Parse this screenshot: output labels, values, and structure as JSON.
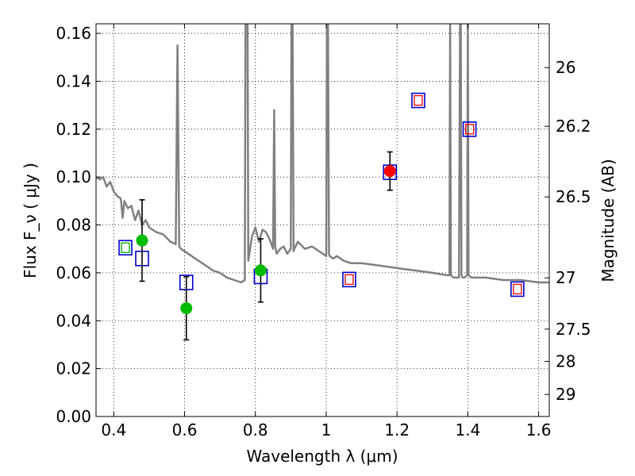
{
  "chart_data": {
    "type": "scatter",
    "title": "",
    "xlabel": "Wavelength  λ (μm)",
    "ylabel": "Flux  F_ν  ( μJy )",
    "ylabel_right": "Magnitude (AB)",
    "xlim": [
      0.35,
      1.63
    ],
    "ylim": [
      0.0,
      0.164
    ],
    "grid": true,
    "x_ticks": [
      0.4,
      0.6,
      0.8,
      1.0,
      1.2,
      1.4,
      1.6
    ],
    "x_tick_labels": [
      "0.4",
      "0.6",
      "0.8",
      "1",
      "1.2",
      "1.4",
      "1.6"
    ],
    "y_ticks": [
      0.0,
      0.02,
      0.04,
      0.06,
      0.08,
      0.1,
      0.12,
      0.14,
      0.16
    ],
    "y_tick_labels": [
      "0.00",
      "0.02",
      "0.04",
      "0.06",
      "0.08",
      "0.10",
      "0.12",
      "0.14",
      "0.16"
    ],
    "right_ticks": [
      {
        "label": "26",
        "flux": 0.1457
      },
      {
        "label": "26.2",
        "flux": 0.1212
      },
      {
        "label": "26.5",
        "flux": 0.0917
      },
      {
        "label": "27",
        "flux": 0.0579
      },
      {
        "label": "27.5",
        "flux": 0.0365
      },
      {
        "label": "28",
        "flux": 0.023
      },
      {
        "label": "29",
        "flux": 0.0092
      }
    ],
    "model_spectrum": {
      "color": "#808080",
      "x": [
        0.35,
        0.36,
        0.37,
        0.38,
        0.39,
        0.4,
        0.41,
        0.42,
        0.425,
        0.43,
        0.44,
        0.45,
        0.46,
        0.47,
        0.48,
        0.49,
        0.5,
        0.52,
        0.54,
        0.56,
        0.575,
        0.58,
        0.585,
        0.59,
        0.6,
        0.62,
        0.64,
        0.66,
        0.68,
        0.7,
        0.72,
        0.74,
        0.76,
        0.77,
        0.772,
        0.775,
        0.778,
        0.78,
        0.79,
        0.8,
        0.81,
        0.82,
        0.83,
        0.84,
        0.85,
        0.853,
        0.856,
        0.86,
        0.87,
        0.88,
        0.89,
        0.9,
        0.902,
        0.905,
        0.908,
        0.91,
        0.92,
        0.94,
        0.96,
        0.98,
        1.0,
        1.002,
        1.005,
        1.008,
        1.01,
        1.02,
        1.03,
        1.05,
        1.07,
        1.1,
        1.15,
        1.2,
        1.25,
        1.3,
        1.34,
        1.348,
        1.35,
        1.352,
        1.36,
        1.375,
        1.378,
        1.38,
        1.382,
        1.385,
        1.39,
        1.398,
        1.4,
        1.402,
        1.41,
        1.45,
        1.5,
        1.55,
        1.6,
        1.63
      ],
      "y": [
        0.1,
        0.099,
        0.1,
        0.096,
        0.098,
        0.094,
        0.092,
        0.091,
        0.083,
        0.09,
        0.087,
        0.088,
        0.082,
        0.086,
        0.08,
        0.082,
        0.079,
        0.077,
        0.076,
        0.073,
        0.072,
        0.155,
        0.071,
        0.07,
        0.069,
        0.067,
        0.065,
        0.063,
        0.061,
        0.06,
        0.058,
        0.057,
        0.056,
        0.057,
        0.165,
        0.165,
        0.165,
        0.065,
        0.075,
        0.079,
        0.073,
        0.078,
        0.077,
        0.074,
        0.07,
        0.128,
        0.071,
        0.068,
        0.07,
        0.071,
        0.068,
        0.07,
        0.165,
        0.165,
        0.069,
        0.07,
        0.073,
        0.07,
        0.071,
        0.069,
        0.067,
        0.165,
        0.165,
        0.068,
        0.067,
        0.066,
        0.067,
        0.065,
        0.064,
        0.064,
        0.063,
        0.062,
        0.061,
        0.06,
        0.059,
        0.059,
        0.165,
        0.059,
        0.058,
        0.058,
        0.165,
        0.165,
        0.059,
        0.058,
        0.058,
        0.059,
        0.165,
        0.059,
        0.058,
        0.058,
        0.057,
        0.057,
        0.056,
        0.056
      ]
    },
    "series": [
      {
        "marker": "open-square",
        "color": "#0000cc",
        "x": [
          0.433,
          0.48,
          0.605,
          0.815,
          1.065,
          1.18,
          1.26,
          1.405,
          1.54
        ],
        "y": [
          0.0705,
          0.066,
          0.056,
          0.0585,
          0.0572,
          0.102,
          0.132,
          0.12,
          0.0532
        ]
      },
      {
        "marker": "small-open-square",
        "color": "#ff0000",
        "x": [
          1.065,
          1.26,
          1.405,
          1.54
        ],
        "y": [
          0.0572,
          0.132,
          0.12,
          0.0532
        ]
      },
      {
        "marker": "small-open-square",
        "color": "#00aa00",
        "x": [
          0.433
        ],
        "y": [
          0.0705
        ]
      },
      {
        "marker": "filled-circle",
        "color": "#00bb00",
        "x": [
          0.48,
          0.605,
          0.815
        ],
        "y": [
          0.0735,
          0.0452,
          0.061
        ],
        "err": [
          0.017,
          0.0132,
          0.0132
        ]
      },
      {
        "marker": "filled-circle",
        "color": "#ff0000",
        "x": [
          1.18
        ],
        "y": [
          0.1025
        ],
        "err": [
          0.008
        ]
      }
    ]
  }
}
